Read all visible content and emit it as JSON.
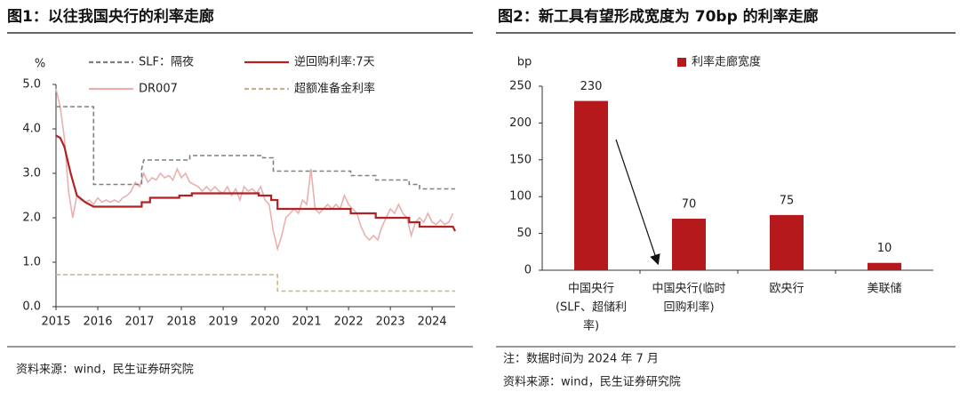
{
  "chart_data": [
    {
      "type": "line",
      "title": "图1：以往我国央行的利率走廊",
      "source": "资料来源：wind，民生证券研究院",
      "y_label": "%",
      "xlim": [
        2015,
        2024.55
      ],
      "xticks": [
        2015,
        2016,
        2017,
        2018,
        2019,
        2020,
        2021,
        2022,
        2023,
        2024
      ],
      "ylim": [
        0,
        5
      ],
      "yticks": [
        {
          "value": 0,
          "label": "0.0"
        },
        {
          "value": 1,
          "label": "1.0"
        },
        {
          "value": 2,
          "label": "2.0"
        },
        {
          "value": 3,
          "label": "3.0"
        },
        {
          "value": 4,
          "label": "4.0"
        },
        {
          "value": 5,
          "label": "5.0"
        }
      ],
      "series": [
        {
          "name": "SLF：隔夜",
          "color": "#808080",
          "style": "dashed",
          "x": [
            2015,
            2015.9,
            2015.9,
            2017.05,
            2017.05,
            2017.1,
            2018.2,
            2018.2,
            2019.95,
            2019.95,
            2020.2,
            2020.2,
            2022.05,
            2022.05,
            2022.65,
            2022.65,
            2023.45,
            2023.45,
            2023.7,
            2023.7,
            2024.55
          ],
          "values": [
            4.5,
            4.5,
            2.75,
            2.75,
            3.1,
            3.3,
            3.3,
            3.4,
            3.4,
            3.35,
            3.35,
            3.05,
            3.05,
            2.95,
            2.95,
            2.85,
            2.85,
            2.75,
            2.75,
            2.65,
            2.65
          ]
        },
        {
          "name": "逆回购利率:7天",
          "color": "#b22222",
          "style": "solid",
          "x": [
            2015,
            2015.1,
            2015.2,
            2015.35,
            2015.5,
            2015.7,
            2015.9,
            2017.05,
            2017.05,
            2017.25,
            2017.25,
            2017.95,
            2017.95,
            2018.25,
            2018.25,
            2019.85,
            2019.85,
            2020.15,
            2020.15,
            2020.3,
            2020.3,
            2022.05,
            2022.05,
            2022.65,
            2022.65,
            2023.45,
            2023.45,
            2023.7,
            2023.7,
            2024.5,
            2024.55
          ],
          "values": [
            3.85,
            3.8,
            3.6,
            3.0,
            2.5,
            2.35,
            2.25,
            2.25,
            2.35,
            2.35,
            2.45,
            2.45,
            2.5,
            2.5,
            2.55,
            2.55,
            2.5,
            2.5,
            2.4,
            2.4,
            2.2,
            2.2,
            2.1,
            2.1,
            2.0,
            2.0,
            1.9,
            1.9,
            1.8,
            1.8,
            1.7
          ]
        },
        {
          "name": "DR007",
          "color": "#eab0b0",
          "style": "solid",
          "x": [
            2015,
            2015.1,
            2015.2,
            2015.3,
            2015.4,
            2015.5,
            2015.6,
            2015.7,
            2015.8,
            2015.9,
            2016,
            2016.1,
            2016.2,
            2016.3,
            2016.4,
            2016.5,
            2016.6,
            2016.7,
            2016.8,
            2016.9,
            2017,
            2017.1,
            2017.2,
            2017.3,
            2017.4,
            2017.5,
            2017.6,
            2017.7,
            2017.8,
            2017.9,
            2018,
            2018.1,
            2018.2,
            2018.3,
            2018.4,
            2018.5,
            2018.6,
            2018.7,
            2018.8,
            2018.9,
            2019,
            2019.1,
            2019.2,
            2019.3,
            2019.4,
            2019.5,
            2019.6,
            2019.7,
            2019.8,
            2019.9,
            2020,
            2020.1,
            2020.2,
            2020.3,
            2020.4,
            2020.5,
            2020.6,
            2020.7,
            2020.8,
            2020.9,
            2021,
            2021.1,
            2021.2,
            2021.3,
            2021.4,
            2021.5,
            2021.6,
            2021.7,
            2021.8,
            2021.9,
            2022,
            2022.1,
            2022.2,
            2022.3,
            2022.4,
            2022.5,
            2022.6,
            2022.7,
            2022.8,
            2022.9,
            2023,
            2023.1,
            2023.2,
            2023.3,
            2023.4,
            2023.5,
            2023.6,
            2023.7,
            2023.8,
            2023.9,
            2024,
            2024.1,
            2024.2,
            2024.3,
            2024.4,
            2024.5
          ],
          "values": [
            4.9,
            4.5,
            3.8,
            2.6,
            2.0,
            2.5,
            2.4,
            2.35,
            2.4,
            2.3,
            2.45,
            2.35,
            2.4,
            2.35,
            2.4,
            2.35,
            2.45,
            2.5,
            2.6,
            2.8,
            2.7,
            3.0,
            2.8,
            2.9,
            2.85,
            3.0,
            2.9,
            2.95,
            2.85,
            3.1,
            2.9,
            3.0,
            2.8,
            2.75,
            2.7,
            2.6,
            2.7,
            2.6,
            2.7,
            2.6,
            2.55,
            2.7,
            2.5,
            2.65,
            2.4,
            2.7,
            2.6,
            2.65,
            2.55,
            2.7,
            2.4,
            2.3,
            1.7,
            1.3,
            1.6,
            2.0,
            2.1,
            2.2,
            2.1,
            2.4,
            2.3,
            3.1,
            2.2,
            2.1,
            2.2,
            2.3,
            2.2,
            2.3,
            2.2,
            2.5,
            2.3,
            2.2,
            2.1,
            1.8,
            1.6,
            1.5,
            1.6,
            1.5,
            1.8,
            2.0,
            2.2,
            2.1,
            2.3,
            2.1,
            2.0,
            1.6,
            1.9,
            2.0,
            1.9,
            2.1,
            1.9,
            1.85,
            1.95,
            1.85,
            1.9,
            2.1
          ]
        },
        {
          "name": "超额准备金利率",
          "color": "#c8b38a",
          "style": "dashed",
          "x": [
            2015,
            2020.3,
            2020.3,
            2024.55
          ],
          "values": [
            0.72,
            0.72,
            0.35,
            0.35
          ]
        }
      ]
    },
    {
      "type": "bar",
      "title": "图2：新工具有望形成宽度为 70bp 的利率走廊",
      "note": "注：数据时间为 2024 年 7 月",
      "source": "资料来源：wind，民生证券研究院",
      "y_label": "bp",
      "categories": [
        [
          "中国央行",
          "(SLF、超储利",
          "率)"
        ],
        [
          "中国央行(临时",
          "回购利率)"
        ],
        [
          "欧央行"
        ],
        [
          "美联储"
        ]
      ],
      "series": [
        {
          "name": "利率走廊宽度",
          "color": "#b5191b",
          "values": [
            230,
            70,
            75,
            10
          ]
        }
      ],
      "ylim": [
        0,
        250
      ],
      "yticks": [
        0,
        50,
        100,
        150,
        200,
        250
      ]
    }
  ]
}
